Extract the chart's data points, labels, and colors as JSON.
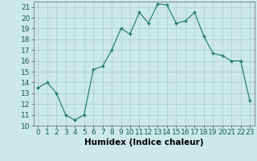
{
  "x": [
    0,
    1,
    2,
    3,
    4,
    5,
    6,
    7,
    8,
    9,
    10,
    11,
    12,
    13,
    14,
    15,
    16,
    17,
    18,
    19,
    20,
    21,
    22,
    23
  ],
  "y": [
    13.5,
    14.0,
    13.0,
    11.0,
    10.5,
    11.0,
    15.2,
    15.5,
    17.0,
    19.0,
    18.5,
    20.5,
    19.5,
    21.3,
    21.2,
    19.5,
    19.7,
    20.5,
    18.3,
    16.7,
    16.5,
    16.0,
    16.0,
    12.3
  ],
  "xlabel": "Humidex (Indice chaleur)",
  "ylim": [
    10,
    21.5
  ],
  "xlim": [
    -0.5,
    23.5
  ],
  "yticks": [
    10,
    11,
    12,
    13,
    14,
    15,
    16,
    17,
    18,
    19,
    20,
    21
  ],
  "xticks": [
    0,
    1,
    2,
    3,
    4,
    5,
    6,
    7,
    8,
    9,
    10,
    11,
    12,
    13,
    14,
    15,
    16,
    17,
    18,
    19,
    20,
    21,
    22,
    23
  ],
  "line_color": "#1a7a5e",
  "marker_color": "#1a7a5e",
  "bg_color": "#cce8e8",
  "grid_color": "#aacccc",
  "tick_label_fontsize": 6.5,
  "xlabel_fontsize": 7.5
}
